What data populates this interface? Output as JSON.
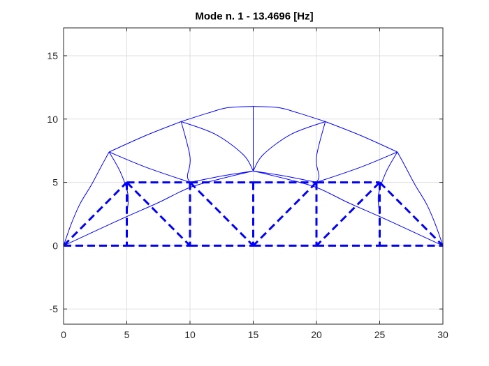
{
  "chart_data": {
    "type": "line",
    "title": "Mode n. 1 - 13.4696 [Hz]",
    "xlabel": "",
    "ylabel": "",
    "xlim": [
      0,
      30
    ],
    "ylim": [
      -6.2,
      17.2
    ],
    "x_ticks": [
      0,
      5,
      10,
      15,
      20,
      25,
      30
    ],
    "y_ticks": [
      -5,
      0,
      5,
      10,
      15
    ],
    "x_tick_labels": [
      "0",
      "5",
      "10",
      "15",
      "20",
      "25",
      "30"
    ],
    "y_tick_labels": [
      "-5",
      "0",
      "5",
      "10",
      "15"
    ],
    "grid": true,
    "colors": {
      "line": "#0000ff",
      "grid": "#dfdfdf",
      "axis": "#262626"
    },
    "series": [
      {
        "style": "dashed",
        "segments": [
          [
            [
              0,
              0
            ],
            [
              5,
              0
            ]
          ],
          [
            [
              5,
              0
            ],
            [
              10,
              0
            ]
          ],
          [
            [
              10,
              0
            ],
            [
              15,
              0
            ]
          ],
          [
            [
              15,
              0
            ],
            [
              20,
              0
            ]
          ],
          [
            [
              20,
              0
            ],
            [
              25,
              0
            ]
          ],
          [
            [
              25,
              0
            ],
            [
              30,
              0
            ]
          ],
          [
            [
              5,
              5
            ],
            [
              10,
              5
            ]
          ],
          [
            [
              10,
              5
            ],
            [
              15,
              5
            ]
          ],
          [
            [
              15,
              5
            ],
            [
              20,
              5
            ]
          ],
          [
            [
              20,
              5
            ],
            [
              25,
              5
            ]
          ],
          [
            [
              0,
              0
            ],
            [
              5,
              5
            ]
          ],
          [
            [
              5,
              5
            ],
            [
              5,
              0
            ]
          ],
          [
            [
              5,
              5
            ],
            [
              10,
              0
            ]
          ],
          [
            [
              10,
              5
            ],
            [
              10,
              0
            ]
          ],
          [
            [
              10,
              5
            ],
            [
              15,
              0
            ]
          ],
          [
            [
              15,
              5
            ],
            [
              15,
              0
            ]
          ],
          [
            [
              20,
              5
            ],
            [
              15,
              0
            ]
          ],
          [
            [
              20,
              5
            ],
            [
              20,
              0
            ]
          ],
          [
            [
              25,
              5
            ],
            [
              20,
              0
            ]
          ],
          [
            [
              25,
              5
            ],
            [
              25,
              0
            ]
          ],
          [
            [
              25,
              5
            ],
            [
              30,
              0
            ]
          ]
        ]
      },
      {
        "style": "solid",
        "curves": [
          [
            [
              0,
              0
            ],
            [
              0.6,
              1.7
            ],
            [
              1.3,
              3.3
            ],
            [
              2.2,
              4.8
            ],
            [
              3.0,
              6.3
            ],
            [
              3.6,
              7.4
            ]
          ],
          [
            [
              3.6,
              7.4
            ],
            [
              6.5,
              8.7
            ],
            [
              9.3,
              9.8
            ]
          ],
          [
            [
              9.3,
              9.8
            ],
            [
              11.5,
              10.5
            ],
            [
              13.0,
              10.9
            ],
            [
              15,
              11.0
            ]
          ],
          [
            [
              15,
              11.0
            ],
            [
              17.0,
              10.9
            ],
            [
              18.5,
              10.5
            ],
            [
              20.7,
              9.8
            ]
          ],
          [
            [
              20.7,
              9.8
            ],
            [
              23.5,
              8.7
            ],
            [
              26.4,
              7.4
            ]
          ],
          [
            [
              26.4,
              7.4
            ],
            [
              27.0,
              6.3
            ],
            [
              27.8,
              4.8
            ],
            [
              28.7,
              3.3
            ],
            [
              29.4,
              1.7
            ],
            [
              30,
              0
            ]
          ],
          [
            [
              0,
              0
            ],
            [
              2.6,
              1.2
            ],
            [
              5.0,
              2.3
            ],
            [
              7.5,
              3.4
            ],
            [
              10.0,
              4.6
            ],
            [
              12.5,
              5.3
            ],
            [
              15,
              5.9
            ]
          ],
          [
            [
              15,
              5.9
            ],
            [
              17.5,
              5.3
            ],
            [
              20.0,
              4.6
            ],
            [
              22.5,
              3.4
            ],
            [
              25.0,
              2.3
            ],
            [
              27.4,
              1.2
            ],
            [
              30,
              0
            ]
          ],
          [
            [
              3.6,
              7.4
            ],
            [
              6.5,
              6.2
            ],
            [
              10.0,
              5.0
            ]
          ],
          [
            [
              10.0,
              5.0
            ],
            [
              12.5,
              5.5
            ],
            [
              15,
              5.9
            ]
          ],
          [
            [
              15,
              5.9
            ],
            [
              17.5,
              5.5
            ],
            [
              20.0,
              5.0
            ]
          ],
          [
            [
              20.0,
              5.0
            ],
            [
              23.5,
              6.2
            ],
            [
              26.4,
              7.4
            ]
          ],
          [
            [
              9.3,
              9.8
            ],
            [
              10.0,
              7.0
            ],
            [
              9.8,
              5.5
            ],
            [
              10.0,
              5.0
            ]
          ],
          [
            [
              20.7,
              9.8
            ],
            [
              20.0,
              7.0
            ],
            [
              20.2,
              5.5
            ],
            [
              20.0,
              5.0
            ]
          ],
          [
            [
              3.6,
              7.4
            ],
            [
              4.5,
              5.8
            ],
            [
              5.1,
              4.0
            ],
            [
              5.0,
              2.5
            ]
          ],
          [
            [
              26.4,
              7.4
            ],
            [
              25.5,
              5.8
            ],
            [
              24.9,
              4.0
            ],
            [
              25.0,
              2.5
            ]
          ],
          [
            [
              9.3,
              9.8
            ],
            [
              12.0,
              8.8
            ],
            [
              14.2,
              7.2
            ],
            [
              15,
              5.9
            ]
          ],
          [
            [
              20.7,
              9.8
            ],
            [
              18.0,
              8.8
            ],
            [
              15.8,
              7.2
            ],
            [
              15,
              5.9
            ]
          ],
          [
            [
              15,
              11.0
            ],
            [
              15,
              5.9
            ]
          ]
        ]
      }
    ]
  }
}
